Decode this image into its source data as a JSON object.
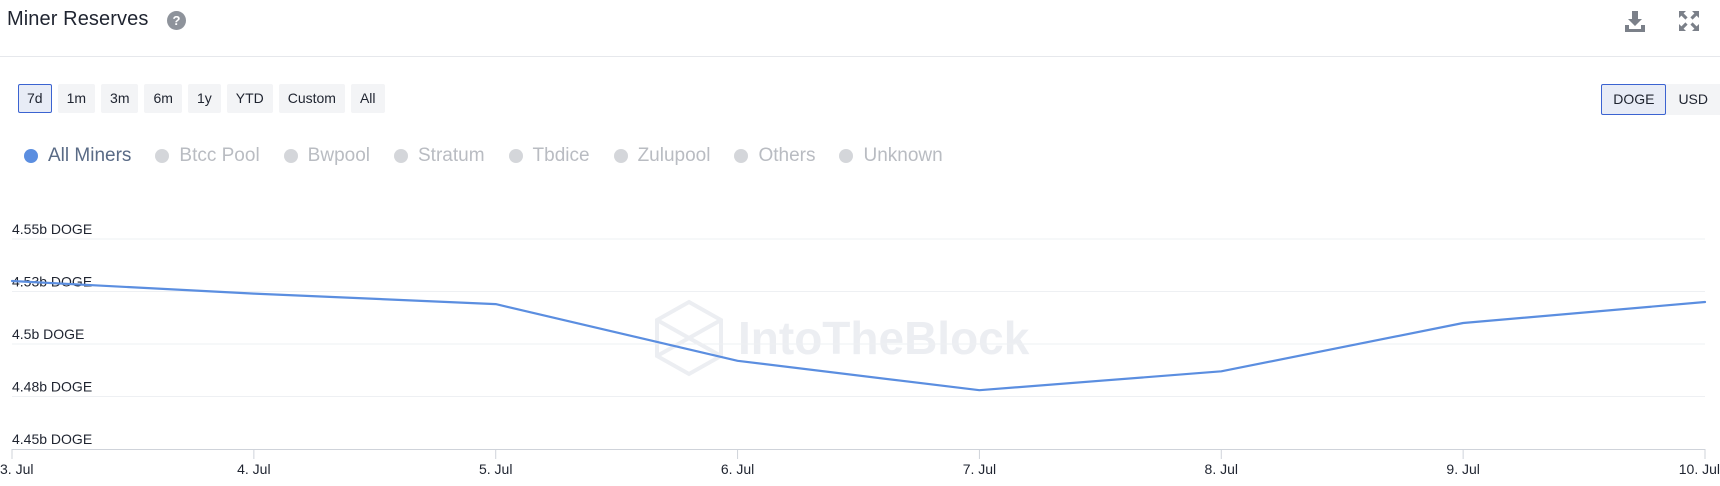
{
  "header": {
    "title": "Miner Reserves",
    "help_icon": "question-circle-icon",
    "download_icon": "download-icon",
    "expand_icon": "expand-icon"
  },
  "range_buttons": [
    {
      "label": "7d",
      "active": true
    },
    {
      "label": "1m",
      "active": false
    },
    {
      "label": "3m",
      "active": false
    },
    {
      "label": "6m",
      "active": false
    },
    {
      "label": "1y",
      "active": false
    },
    {
      "label": "YTD",
      "active": false
    },
    {
      "label": "Custom",
      "active": false
    },
    {
      "label": "All",
      "active": false
    }
  ],
  "currency_buttons": [
    {
      "label": "DOGE",
      "active": true
    },
    {
      "label": "USD",
      "active": false
    }
  ],
  "legend": [
    {
      "label": "All Miners",
      "active": true
    },
    {
      "label": "Btcc Pool",
      "active": false
    },
    {
      "label": "Bwpool",
      "active": false
    },
    {
      "label": "Stratum",
      "active": false
    },
    {
      "label": "Tbdice",
      "active": false
    },
    {
      "label": "Zulupool",
      "active": false
    },
    {
      "label": "Others",
      "active": false
    },
    {
      "label": "Unknown",
      "active": false
    }
  ],
  "watermark": "IntoTheBlock",
  "colors": {
    "series": "#5b8ee0",
    "legend_inactive_dot": "#d4d6da",
    "legend_inactive_text": "#b9bcc2",
    "legend_active_text": "#5a6b86",
    "accent": "#3b63d1"
  },
  "chart_data": {
    "type": "line",
    "title": "Miner Reserves",
    "x": [
      "3. Jul",
      "4. Jul",
      "5. Jul",
      "6. Jul",
      "7. Jul",
      "8. Jul",
      "9. Jul",
      "10. Jul"
    ],
    "series": [
      {
        "name": "All Miners",
        "values": [
          4.53,
          4.524,
          4.519,
          4.492,
          4.478,
          4.487,
          4.51,
          4.52
        ]
      }
    ],
    "ylim": [
      4.45,
      4.55
    ],
    "yticks": [
      {
        "value": 4.55,
        "label": "4.55b DOGE"
      },
      {
        "value": 4.525,
        "label": "4.53b DOGE"
      },
      {
        "value": 4.5,
        "label": "4.5b DOGE"
      },
      {
        "value": 4.475,
        "label": "4.48b DOGE"
      },
      {
        "value": 4.45,
        "label": "4.45b DOGE"
      }
    ],
    "grid": true,
    "legend": "top-left"
  }
}
